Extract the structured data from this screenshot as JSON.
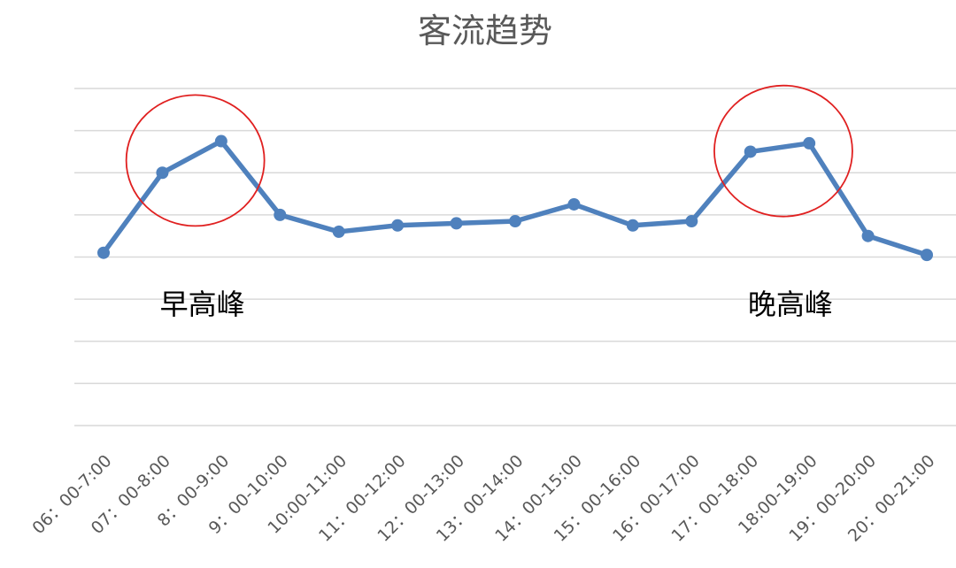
{
  "chart_data": {
    "type": "line",
    "title": "客流趋势",
    "xlabel": "",
    "ylabel": "",
    "grid": true,
    "categories": [
      "06：00-7:00",
      "07：00-8:00",
      "8：00-9:00",
      "9：00-10:00",
      "10:00-11:00",
      "11：00-12:00",
      "12：00-13:00",
      "13：00-14:00",
      "14：00-15:00",
      "15：00-16:00",
      "16：00-17:00",
      "17：00-18:00",
      "18:00-19:00",
      "19：00-20:00",
      "20：00-21:00"
    ],
    "ylim": [
      0,
      8
    ],
    "series": [
      {
        "color": "#4f81bd",
        "values": [
          4.1,
          6.0,
          6.75,
          5.0,
          4.6,
          4.75,
          4.8,
          4.85,
          5.25,
          4.75,
          4.85,
          6.5,
          6.7,
          4.5,
          4.05
        ]
      }
    ],
    "annotations": [
      {
        "text": "早高峰",
        "category_range": [
          1,
          2
        ],
        "color": "#e02020"
      },
      {
        "text": "晚高峰",
        "category_range": [
          11,
          12
        ],
        "color": "#e02020"
      }
    ]
  }
}
